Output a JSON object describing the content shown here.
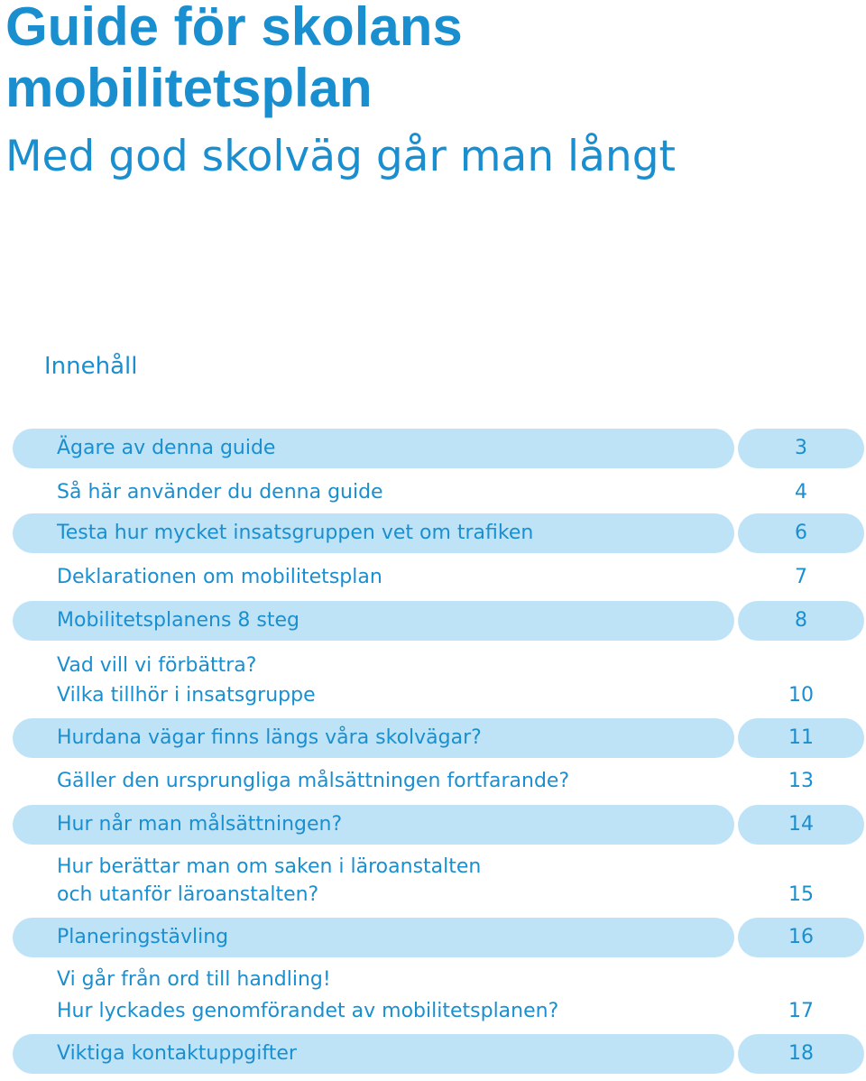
{
  "header": {
    "title_line1": "Guide för skolans",
    "title_line2": "mobilitetsplan",
    "subtitle": "Med god skolväg går man långt"
  },
  "toc": {
    "heading": "Innehåll",
    "items": [
      {
        "label": "Ägare av denna guide",
        "page": "3",
        "highlighted": true
      },
      {
        "label": "Så här använder du denna guide",
        "page": "4",
        "highlighted": false
      },
      {
        "label": "Testa hur mycket insatsgruppen vet om trafiken",
        "page": "6",
        "highlighted": true
      },
      {
        "label": "Deklarationen om mobilitetsplan",
        "page": "7",
        "highlighted": false
      },
      {
        "label": "Mobilitetsplanens 8 steg",
        "page": "8",
        "highlighted": true
      },
      {
        "label_line1": "Vad vill vi förbättra?",
        "label_line2": "Vilka tillhör i insatsgruppe",
        "page": "10",
        "highlighted": false
      },
      {
        "label": "Hurdana vägar finns längs våra skolvägar?",
        "page": "11",
        "highlighted": true
      },
      {
        "label": "Gäller den ursprungliga målsättningen fortfarande?",
        "page": "13",
        "highlighted": false
      },
      {
        "label": "Hur når man målsättningen?",
        "page": "14",
        "highlighted": true
      },
      {
        "label_line1": "Hur berättar man om saken i läroanstalten",
        "label_line2": "och utanför läroanstalten?",
        "page": "15",
        "highlighted": false
      },
      {
        "label": "Planeringstävling",
        "page": "16",
        "highlighted": true
      },
      {
        "label_line1": "Vi går från ord till handling!",
        "label_line2": "Hur lyckades genomförandet av mobilitetsplanen?",
        "page": "17",
        "highlighted": false
      },
      {
        "label": "Viktiga kontaktuppgifter",
        "page": "18",
        "highlighted": true
      }
    ]
  },
  "colors": {
    "text": "#1a8fd0",
    "highlight": "#bfe3f6",
    "background": "#ffffff"
  }
}
